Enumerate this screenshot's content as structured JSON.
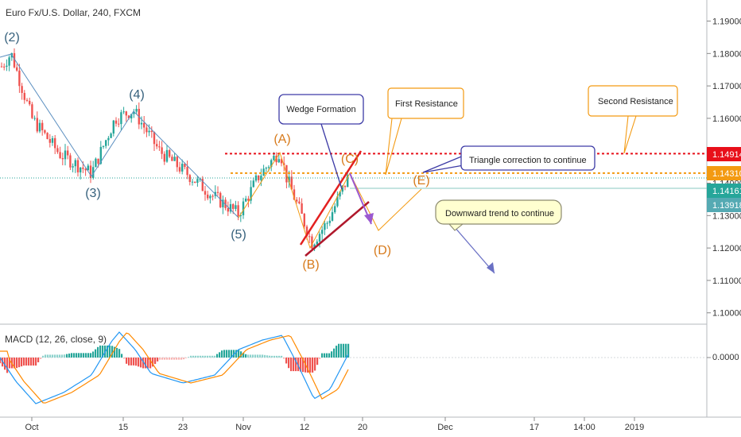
{
  "chart_data": {
    "type": "candlestick",
    "title": "Euro Fx/U.S. Dollar, 240, FXCM",
    "price_axis": {
      "ylim": [
        1.0965,
        1.1965
      ],
      "ticks": [
        "1.19000",
        "1.18000",
        "1.17000",
        "1.16000",
        "1.15000",
        "1.14000",
        "1.13000",
        "1.12000",
        "1.11000",
        "1.10000"
      ]
    },
    "time_axis": {
      "labels": [
        "Oct",
        "15",
        "23",
        "Nov",
        "12",
        "20",
        "Dec",
        "17",
        "14:00",
        "2019"
      ]
    },
    "price_tags": [
      {
        "value": "1.14914",
        "color": "#e8101a"
      },
      {
        "value": "1.14310",
        "color": "#f39a12"
      },
      {
        "value": "1.14161",
        "color": "#26a69a"
      },
      {
        "value": "1.13918",
        "color": "#55aab3"
      }
    ],
    "wave_labels": [
      {
        "text": "(2)",
        "color": "#35607c"
      },
      {
        "text": "(3)",
        "color": "#35607c"
      },
      {
        "text": "(4)",
        "color": "#35607c"
      },
      {
        "text": "(5)",
        "color": "#35607c"
      },
      {
        "text": "(A)",
        "color": "#d77a1b"
      },
      {
        "text": "(B)",
        "color": "#d77a1b"
      },
      {
        "text": "(C)",
        "color": "#d77a1b"
      },
      {
        "text": "(D)",
        "color": "#d77a1b"
      },
      {
        "text": "(E)",
        "color": "#d77a1b"
      }
    ],
    "annotations": {
      "wedge": "Wedge Formation",
      "first_resistance": "First Resistance",
      "second_resistance": "Second Resistance",
      "triangle": "Triangle correction to continue",
      "downward": "Downward trend to continue"
    },
    "levels": {
      "second_resistance": 1.1491,
      "first_resistance": 1.1431,
      "price": 1.1416
    },
    "macd": {
      "label": "MACD (12, 26, close, 9)",
      "zero_label": "0.0000"
    }
  }
}
